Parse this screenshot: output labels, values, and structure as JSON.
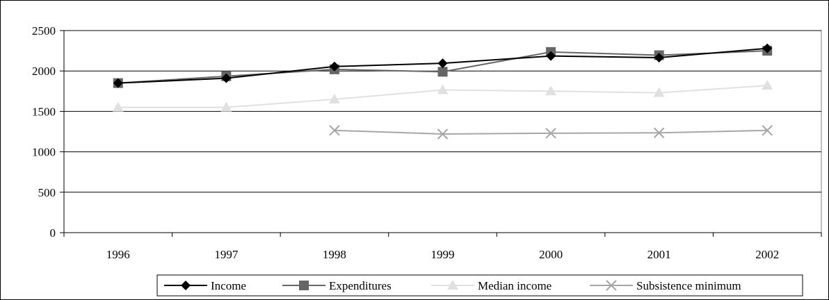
{
  "chart_data": {
    "type": "line",
    "categories": [
      "1996",
      "1997",
      "1998",
      "1999",
      "2000",
      "2001",
      "2002"
    ],
    "ylim": [
      0,
      2500
    ],
    "yticks": [
      0,
      500,
      1000,
      1500,
      2000,
      2500
    ],
    "grid": true,
    "legend_position": "bottom",
    "series": [
      {
        "name": "Income",
        "color": "#000000",
        "marker": "diamond",
        "values": [
          1850,
          1910,
          2055,
          2095,
          2185,
          2165,
          2280
        ]
      },
      {
        "name": "Expenditures",
        "color": "#666666",
        "marker": "square",
        "values": [
          1850,
          1935,
          2020,
          1990,
          2235,
          2195,
          2250
        ]
      },
      {
        "name": "Median income",
        "color": "#e0e0e0",
        "marker": "triangle",
        "values": [
          1550,
          1550,
          1650,
          1765,
          1750,
          1730,
          1820
        ]
      },
      {
        "name": "Subsistence minimum",
        "color": "#a6a6a6",
        "marker": "x",
        "values": [
          null,
          null,
          1265,
          1220,
          1230,
          1235,
          1265
        ]
      }
    ]
  }
}
